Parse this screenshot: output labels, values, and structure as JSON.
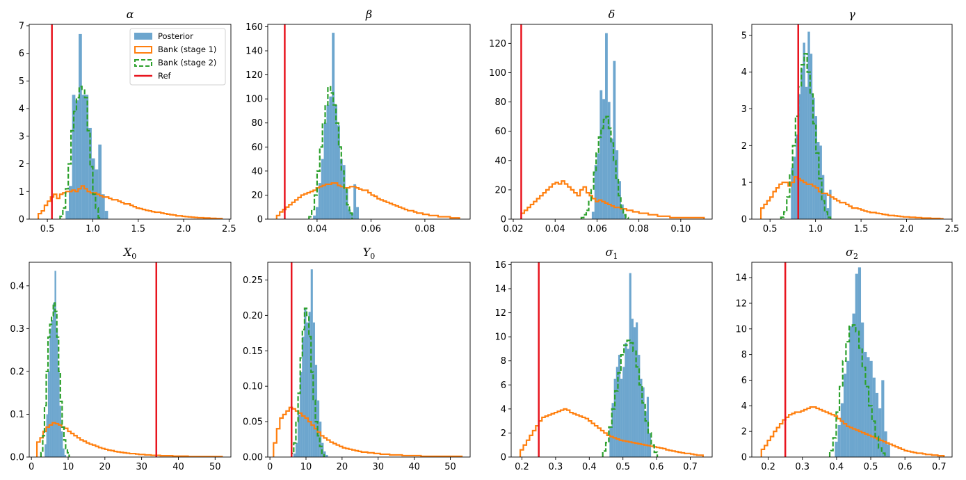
{
  "legend": {
    "posterior": "Posterior",
    "bank1": "Bank (stage 1)",
    "bank2": "Bank (stage 2)",
    "ref": "Ref"
  },
  "colors": {
    "posterior": "#1f77b4",
    "bank1": "#ff7f0e",
    "bank2": "#2ca02c",
    "ref": "#e8141e"
  },
  "chart_data": [
    {
      "type": "histogram",
      "title": "α",
      "xlim": [
        0.3,
        2.52
      ],
      "ylim": [
        0,
        7.05
      ],
      "xticks": [
        0.5,
        1.0,
        1.5,
        2.0,
        2.5
      ],
      "xtick_labels": [
        "0.5",
        "1.0",
        "1.5",
        "2.0",
        "2.5"
      ],
      "yticks": [
        0,
        1,
        2,
        3,
        4,
        5,
        6,
        7
      ],
      "ytick_labels": [
        "0",
        "1",
        "2",
        "3",
        "4",
        "5",
        "6",
        "7"
      ],
      "ref": 0.55,
      "posterior": {
        "start": 0.7,
        "width": 0.036,
        "counts": [
          0.3,
          1.2,
          4.5,
          4.3,
          6.7,
          4.5,
          4.5,
          3.3,
          2.2,
          1.8,
          2.7,
          0.9,
          0.3
        ]
      },
      "bank2": {
        "start": 0.64,
        "width": 0.03,
        "counts": [
          0.1,
          0.4,
          1.1,
          2.0,
          3.2,
          3.9,
          4.4,
          4.8,
          4.7,
          4.4,
          3.2,
          1.9,
          0.9,
          0.4,
          0.05
        ]
      },
      "bank1": {
        "start": 0.4,
        "width": 0.0337,
        "counts": [
          0.2,
          0.3,
          0.5,
          0.65,
          0.8,
          0.9,
          0.75,
          0.9,
          0.95,
          1.0,
          1.0,
          1.05,
          1.0,
          1.1,
          1.2,
          1.1,
          1.0,
          0.95,
          0.95,
          0.9,
          0.85,
          0.8,
          0.8,
          0.75,
          0.7,
          0.7,
          0.65,
          0.6,
          0.55,
          0.55,
          0.5,
          0.45,
          0.4,
          0.38,
          0.35,
          0.32,
          0.3,
          0.27,
          0.25,
          0.25,
          0.22,
          0.2,
          0.18,
          0.16,
          0.15,
          0.12,
          0.12,
          0.1,
          0.09,
          0.08,
          0.07,
          0.06,
          0.05,
          0.05,
          0.04,
          0.04,
          0.03,
          0.03,
          0.02,
          0.02
        ]
      }
    },
    {
      "type": "histogram",
      "title": "β",
      "xlim": [
        0.0217,
        0.0968
      ],
      "ylim": [
        0,
        162
      ],
      "xticks": [
        0.04,
        0.06,
        0.08
      ],
      "xtick_labels": [
        "0.04",
        "0.06",
        "0.08"
      ],
      "yticks": [
        0,
        20,
        40,
        60,
        80,
        100,
        120,
        140,
        160
      ],
      "ytick_labels": [
        "0",
        "20",
        "40",
        "60",
        "80",
        "100",
        "120",
        "140",
        "160"
      ],
      "ref": 0.028,
      "posterior": {
        "start": 0.0385,
        "width": 0.001,
        "counts": [
          3,
          10,
          30,
          50,
          80,
          95,
          102,
          155,
          95,
          78,
          50,
          45,
          25,
          8,
          5,
          29,
          10
        ]
      },
      "bank2": {
        "start": 0.037,
        "width": 0.001,
        "counts": [
          2,
          8,
          20,
          40,
          60,
          80,
          95,
          110,
          105,
          95,
          80,
          60,
          40,
          25,
          12,
          5
        ]
      },
      "bank1": {
        "start": 0.025,
        "width": 0.00113,
        "counts": [
          3,
          6,
          8,
          10,
          12,
          14,
          16,
          18,
          20,
          21,
          22,
          23,
          24,
          26,
          27,
          28,
          29,
          29,
          30,
          30,
          28,
          27,
          26,
          26,
          27,
          27,
          26,
          25,
          24,
          24,
          22,
          20,
          19,
          17,
          16,
          15,
          14,
          13,
          12,
          11,
          10,
          9,
          8,
          7,
          7,
          6,
          5,
          5,
          4,
          4,
          3,
          3,
          3,
          2,
          2,
          2,
          2,
          1,
          1,
          1
        ]
      }
    },
    {
      "type": "histogram",
      "title": "δ",
      "xlim": [
        0.019,
        0.115
      ],
      "ylim": [
        0,
        133
      ],
      "xticks": [
        0.02,
        0.04,
        0.06,
        0.08,
        0.1
      ],
      "xtick_labels": [
        "0.02",
        "0.04",
        "0.06",
        "0.08",
        "0.10"
      ],
      "yticks": [
        0,
        20,
        40,
        60,
        80,
        100,
        120
      ],
      "ytick_labels": [
        "0",
        "20",
        "40",
        "60",
        "80",
        "100",
        "120"
      ],
      "ref": 0.0238,
      "posterior": {
        "start": 0.0575,
        "width": 0.00127,
        "counts": [
          5,
          37,
          45,
          88,
          82,
          127,
          80,
          55,
          108,
          47,
          26,
          10,
          3
        ]
      },
      "bank2": {
        "start": 0.0525,
        "width": 0.00118,
        "counts": [
          1,
          3,
          6,
          12,
          20,
          32,
          45,
          56,
          62,
          68,
          70,
          62,
          52,
          40,
          28,
          16,
          8,
          3,
          1
        ]
      },
      "bank1": {
        "start": 0.0238,
        "width": 0.00148,
        "counts": [
          4,
          6,
          8,
          10,
          12,
          14,
          16,
          18,
          20,
          22,
          24,
          25,
          24,
          26,
          24,
          22,
          20,
          18,
          16,
          20,
          22,
          18,
          16,
          14,
          12,
          13,
          12,
          11,
          10,
          9,
          8,
          8,
          7,
          7,
          6,
          6,
          5,
          5,
          4,
          4,
          4,
          3,
          3,
          3,
          2,
          2,
          2,
          2,
          1,
          1,
          1,
          1,
          1,
          1,
          1,
          1,
          1,
          1,
          1
        ]
      }
    },
    {
      "type": "histogram",
      "title": "γ",
      "xlim": [
        0.3,
        2.5
      ],
      "ylim": [
        0,
        5.3
      ],
      "xticks": [
        0.5,
        1.0,
        1.5,
        2.0,
        2.5
      ],
      "xtick_labels": [
        "0.5",
        "1.0",
        "1.5",
        "2.0",
        "2.5"
      ],
      "yticks": [
        0,
        1,
        2,
        3,
        4,
        5
      ],
      "ytick_labels": [
        "0",
        "1",
        "2",
        "3",
        "4",
        "5"
      ],
      "ref": 0.81,
      "posterior": {
        "start": 0.73,
        "width": 0.0262,
        "counts": [
          1.4,
          1.7,
          2.3,
          3.4,
          4.1,
          4.8,
          3.6,
          5.1,
          4.5,
          3.3,
          2.8,
          2.1,
          2.0,
          1.2,
          0.7,
          0.3,
          0.8
        ]
      },
      "bank2": {
        "start": 0.62,
        "width": 0.032,
        "counts": [
          0.05,
          0.2,
          0.6,
          1.2,
          2.0,
          2.8,
          3.6,
          4.2,
          4.5,
          4.0,
          3.4,
          2.6,
          1.8,
          1.1,
          0.5,
          0.2,
          0.05
        ]
      },
      "bank1": {
        "start": 0.4,
        "width": 0.0333,
        "counts": [
          0.3,
          0.4,
          0.5,
          0.6,
          0.75,
          0.85,
          0.95,
          1.0,
          1.0,
          0.9,
          1.0,
          1.15,
          1.1,
          1.05,
          1.0,
          0.95,
          0.95,
          0.9,
          0.85,
          0.75,
          0.7,
          0.7,
          0.65,
          0.6,
          0.55,
          0.5,
          0.45,
          0.45,
          0.4,
          0.35,
          0.3,
          0.3,
          0.28,
          0.25,
          0.22,
          0.2,
          0.18,
          0.18,
          0.16,
          0.15,
          0.13,
          0.12,
          0.1,
          0.1,
          0.09,
          0.08,
          0.07,
          0.06,
          0.06,
          0.05,
          0.05,
          0.04,
          0.04,
          0.03,
          0.03,
          0.03,
          0.02,
          0.02,
          0.02,
          0.01
        ]
      }
    },
    {
      "type": "histogram",
      "title": "X0",
      "xlim": [
        -0.6,
        54.3
      ],
      "ylim": [
        0,
        0.455
      ],
      "xticks": [
        0,
        10,
        20,
        30,
        40,
        50
      ],
      "xtick_labels": [
        "0",
        "10",
        "20",
        "30",
        "40",
        "50"
      ],
      "yticks": [
        0,
        0.1,
        0.2,
        0.3,
        0.4
      ],
      "ytick_labels": [
        "0.0",
        "0.1",
        "0.2",
        "0.3",
        "0.4"
      ],
      "ref": 34,
      "posterior": {
        "start": 3.6,
        "width": 0.45,
        "counts": [
          0.03,
          0.1,
          0.2,
          0.3,
          0.32,
          0.36,
          0.435,
          0.3,
          0.21,
          0.12,
          0.06,
          0.02,
          0.005
        ]
      },
      "bank2": {
        "start": 2.6,
        "width": 0.48,
        "counts": [
          0.01,
          0.05,
          0.12,
          0.2,
          0.28,
          0.31,
          0.33,
          0.36,
          0.34,
          0.28,
          0.2,
          0.13,
          0.07,
          0.04,
          0.02,
          0.01
        ]
      },
      "bank1": {
        "start": 1.5,
        "width": 0.84,
        "counts": [
          0.035,
          0.045,
          0.06,
          0.07,
          0.075,
          0.08,
          0.078,
          0.075,
          0.07,
          0.067,
          0.06,
          0.055,
          0.05,
          0.045,
          0.04,
          0.037,
          0.033,
          0.03,
          0.028,
          0.025,
          0.022,
          0.02,
          0.018,
          0.016,
          0.015,
          0.013,
          0.012,
          0.011,
          0.01,
          0.009,
          0.008,
          0.008,
          0.007,
          0.006,
          0.006,
          0.005,
          0.005,
          0.004,
          0.004,
          0.004,
          0.003,
          0.003,
          0.003,
          0.003,
          0.002,
          0.002,
          0.002,
          0.002,
          0.002,
          0.001,
          0.001,
          0.001,
          0.001,
          0.001,
          0.001,
          0.001,
          0.001,
          0.001,
          0.001,
          0.001
        ]
      }
    },
    {
      "type": "histogram",
      "title": "Y0",
      "xlim": [
        -0.6,
        55.5
      ],
      "ylim": [
        0,
        0.275
      ],
      "xticks": [
        0,
        10,
        20,
        30,
        40,
        50
      ],
      "xtick_labels": [
        "0",
        "10",
        "20",
        "30",
        "40",
        "50"
      ],
      "yticks": [
        0,
        0.05,
        0.1,
        0.15,
        0.2,
        0.25
      ],
      "ytick_labels": [
        "0.00",
        "0.05",
        "0.10",
        "0.15",
        "0.20",
        "0.25"
      ],
      "ref": 6,
      "posterior": {
        "start": 6.5,
        "width": 0.6,
        "counts": [
          0.005,
          0.02,
          0.06,
          0.12,
          0.17,
          0.21,
          0.19,
          0.205,
          0.265,
          0.19,
          0.13,
          0.08,
          0.05,
          0.02,
          0.008,
          0.003
        ]
      },
      "bank2": {
        "start": 6.0,
        "width": 0.6,
        "counts": [
          0.005,
          0.02,
          0.05,
          0.09,
          0.14,
          0.18,
          0.21,
          0.2,
          0.17,
          0.12,
          0.08,
          0.05,
          0.03,
          0.015,
          0.005
        ]
      },
      "bank1": {
        "start": 1.0,
        "width": 0.87,
        "counts": [
          0.02,
          0.04,
          0.055,
          0.06,
          0.065,
          0.07,
          0.068,
          0.065,
          0.062,
          0.058,
          0.055,
          0.05,
          0.045,
          0.04,
          0.035,
          0.03,
          0.027,
          0.024,
          0.021,
          0.019,
          0.017,
          0.015,
          0.013,
          0.012,
          0.011,
          0.01,
          0.009,
          0.008,
          0.007,
          0.007,
          0.006,
          0.006,
          0.005,
          0.005,
          0.004,
          0.004,
          0.004,
          0.003,
          0.003,
          0.003,
          0.003,
          0.002,
          0.002,
          0.002,
          0.002,
          0.002,
          0.002,
          0.001,
          0.001,
          0.001,
          0.001,
          0.001,
          0.001,
          0.001,
          0.001,
          0.001,
          0.001,
          0.001,
          0.001,
          0.001
        ]
      }
    },
    {
      "type": "histogram",
      "title": "σ1",
      "xlim": [
        0.168,
        0.765
      ],
      "ylim": [
        0,
        16.2
      ],
      "xticks": [
        0.2,
        0.3,
        0.4,
        0.5,
        0.6,
        0.7
      ],
      "xtick_labels": [
        "0.2",
        "0.3",
        "0.4",
        "0.5",
        "0.6",
        "0.7"
      ],
      "yticks": [
        0,
        2,
        4,
        6,
        8,
        10,
        12,
        14,
        16
      ],
      "ytick_labels": [
        "0",
        "2",
        "4",
        "6",
        "8",
        "10",
        "12",
        "14",
        "16"
      ],
      "ref": 0.25,
      "posterior": {
        "start": 0.46,
        "width": 0.0065,
        "counts": [
          2.5,
          4.5,
          6.5,
          7.5,
          8.5,
          6.5,
          7.5,
          9.5,
          9.0,
          15.3,
          11.5,
          10.8,
          11.2,
          8.5,
          6.5,
          5.8,
          3.8,
          5.0,
          2.0
        ]
      },
      "bank2": {
        "start": 0.44,
        "width": 0.009,
        "counts": [
          0.5,
          1.2,
          2.5,
          4.0,
          5.5,
          7.0,
          8.5,
          9.3,
          9.7,
          9.5,
          8.8,
          7.5,
          6.0,
          4.5,
          3.0,
          2.0,
          1.0,
          0.4
        ]
      },
      "bank1": {
        "start": 0.195,
        "width": 0.0092,
        "counts": [
          0.6,
          1.0,
          1.4,
          1.8,
          2.2,
          2.6,
          3.0,
          3.3,
          3.4,
          3.5,
          3.6,
          3.7,
          3.8,
          3.9,
          4.0,
          3.9,
          3.7,
          3.6,
          3.5,
          3.4,
          3.3,
          3.2,
          3.0,
          2.8,
          2.6,
          2.4,
          2.2,
          2.0,
          1.8,
          1.7,
          1.6,
          1.5,
          1.4,
          1.35,
          1.3,
          1.25,
          1.2,
          1.15,
          1.1,
          1.05,
          1.0,
          0.95,
          0.9,
          0.85,
          0.8,
          0.75,
          0.7,
          0.6,
          0.55,
          0.5,
          0.45,
          0.4,
          0.35,
          0.3,
          0.3,
          0.25,
          0.2,
          0.15,
          0.15
        ]
      }
    },
    {
      "type": "histogram",
      "title": "σ2",
      "xlim": [
        0.152,
        0.738
      ],
      "ylim": [
        0,
        15.2
      ],
      "xticks": [
        0.2,
        0.3,
        0.4,
        0.5,
        0.6,
        0.7
      ],
      "xtick_labels": [
        "0.2",
        "0.3",
        "0.4",
        "0.5",
        "0.6",
        "0.7"
      ],
      "yticks": [
        0,
        2,
        4,
        6,
        8,
        10,
        12,
        14
      ],
      "ytick_labels": [
        "0",
        "2",
        "4",
        "6",
        "8",
        "10",
        "12",
        "14"
      ],
      "ref": 0.25,
      "posterior": {
        "start": 0.395,
        "width": 0.0085,
        "counts": [
          1.2,
          2.5,
          4.2,
          6.5,
          7.5,
          10.2,
          11.2,
          14.3,
          14.8,
          10.5,
          8.2,
          7.8,
          7.5,
          6.2,
          5.0,
          3.8,
          6.0,
          2.0,
          1.0
        ]
      },
      "bank2": {
        "start": 0.38,
        "width": 0.0095,
        "counts": [
          0.5,
          1.5,
          3.5,
          5.5,
          7.5,
          9.0,
          10.2,
          10.3,
          9.8,
          8.5,
          7.0,
          5.5,
          4.0,
          2.8,
          1.6,
          0.7,
          0.3
        ]
      },
      "bank1": {
        "start": 0.18,
        "width": 0.0089,
        "counts": [
          0.6,
          0.9,
          1.3,
          1.6,
          2.0,
          2.3,
          2.6,
          2.9,
          3.1,
          3.3,
          3.4,
          3.5,
          3.5,
          3.6,
          3.7,
          3.8,
          3.9,
          3.9,
          3.8,
          3.7,
          3.6,
          3.5,
          3.4,
          3.3,
          3.2,
          3.0,
          2.8,
          2.6,
          2.4,
          2.3,
          2.2,
          2.1,
          2.0,
          1.9,
          1.8,
          1.7,
          1.6,
          1.5,
          1.4,
          1.3,
          1.2,
          1.1,
          1.0,
          0.9,
          0.8,
          0.7,
          0.6,
          0.5,
          0.45,
          0.4,
          0.35,
          0.3,
          0.3,
          0.25,
          0.2,
          0.2,
          0.15,
          0.15,
          0.1,
          0.1
        ]
      }
    }
  ]
}
